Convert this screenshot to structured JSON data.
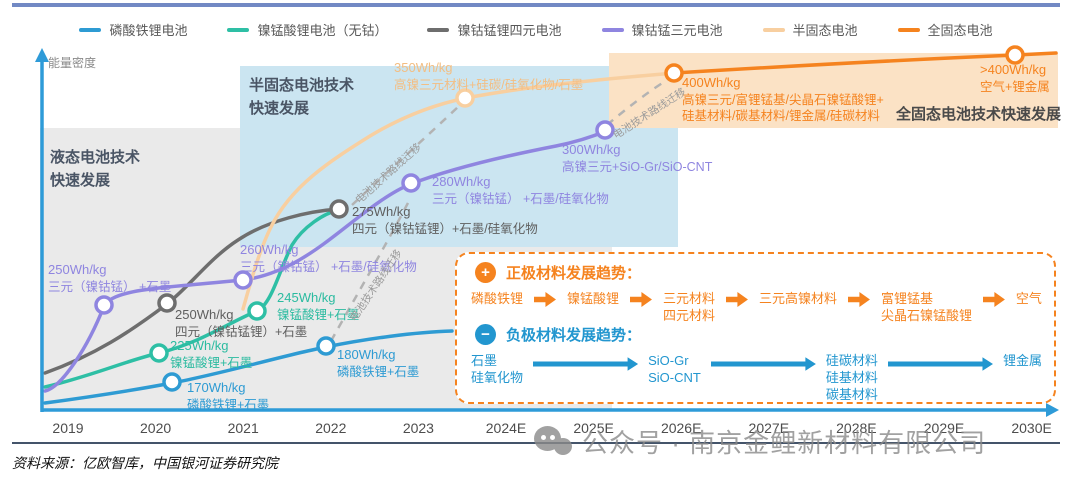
{
  "legend": {
    "items": [
      {
        "label": "磷酸铁锂电池",
        "color": "#2E9BD3"
      },
      {
        "label": "镍锰酸锂电池（无钴）",
        "color": "#2EBFA5"
      },
      {
        "label": "镍钴锰锂四元电池",
        "color": "#6E6E6E"
      },
      {
        "label": "镍钴锰三元电池",
        "color": "#8F85E0"
      },
      {
        "label": "半固态电池",
        "color": "#F8CFA0"
      },
      {
        "label": "全固态电池",
        "color": "#F5831F"
      }
    ]
  },
  "colors": {
    "lfp": "#2E9BD3",
    "lnmo": "#2BBBA0",
    "quad": "#5F5F5F",
    "ncm": "#8F85E0",
    "semi": "#F3BE83",
    "solid": "#F5831F",
    "axis": "#2E9BD8",
    "region_liquid": "#EAEAEA",
    "region_semi": "#CBE5F1",
    "region_solid": "#FBE2C5"
  },
  "axis": {
    "y_label": "能量密度",
    "x_ticks": [
      "2019",
      "2020",
      "2021",
      "2022",
      "2023",
      "2024E",
      "2025E",
      "2026E",
      "2027E",
      "2028E",
      "2029E",
      "2030E"
    ]
  },
  "regions": {
    "liquid": {
      "title": "液态电池技术\n快速发展"
    },
    "semi": {
      "title": "半固态电池技术\n快速发展"
    },
    "solid": {
      "title": "全固态电池技术快速发展"
    }
  },
  "misc": {
    "migration_label": "电池技术路线迁移"
  },
  "chart_data": {
    "type": "line",
    "ylabel": "能量密度",
    "categories": [
      "2019",
      "2020",
      "2021",
      "2022",
      "2023",
      "2024E",
      "2025E",
      "2026E",
      "2027E",
      "2028E",
      "2029E",
      "2030E"
    ],
    "series": [
      {
        "name": "磷酸铁锂电池",
        "points_wh_kg": {
          "2020": 170,
          "2022": 180
        }
      },
      {
        "name": "镍锰酸锂电池（无钴）",
        "points_wh_kg": {
          "2020": 225,
          "2021": 245
        }
      },
      {
        "name": "镍钴锰锂四元电池",
        "points_wh_kg": {
          "2020": 250,
          "2022": 275
        }
      },
      {
        "name": "镍钴锰三元电池",
        "points_wh_kg": {
          "2019": 250,
          "2021": 260,
          "2023": 280,
          "2025E": 300
        }
      },
      {
        "name": "半固态电池",
        "points_wh_kg": {
          "2024E": 350
        }
      },
      {
        "name": "全固态电池",
        "points_wh_kg": {
          "2026E": 400,
          "2030E": ">400"
        }
      }
    ],
    "points": [
      {
        "series": "磷酸铁锂电池",
        "year": "2020",
        "label": "170Wh/kg",
        "materials": "磷酸铁锂+石墨"
      },
      {
        "series": "磷酸铁锂电池",
        "year": "2022",
        "label": "180Wh/kg",
        "materials": "磷酸铁锂+石墨"
      },
      {
        "series": "镍锰酸锂电池（无钴）",
        "year": "2020",
        "label": "225Wh/kg",
        "materials": "镍锰酸锂+石墨"
      },
      {
        "series": "镍锰酸锂电池（无钴）",
        "year": "2021",
        "label": "245Wh/kg",
        "materials": "镍锰酸锂+石墨"
      },
      {
        "series": "镍钴锰锂四元电池",
        "year": "2020",
        "label": "250Wh/kg",
        "materials": "四元（镍钴锰锂）+石墨"
      },
      {
        "series": "镍钴锰锂四元电池",
        "year": "2022",
        "label": "275Wh/kg",
        "materials": "四元（镍钴锰锂）+石墨/硅氧化物"
      },
      {
        "series": "镍钴锰三元电池",
        "year": "2019",
        "label": "250Wh/kg",
        "materials": "三元（镍钴锰） +石墨"
      },
      {
        "series": "镍钴锰三元电池",
        "year": "2021",
        "label": "260Wh/kg",
        "materials": "三元（镍钴锰） +石墨/硅氧化物"
      },
      {
        "series": "镍钴锰三元电池",
        "year": "2023",
        "label": "280Wh/kg",
        "materials": "三元（镍钴锰） +石墨/硅氧化物"
      },
      {
        "series": "镍钴锰三元电池",
        "year": "2025E",
        "label": "300Wh/kg",
        "materials": "高镍三元+SiO-Gr/SiO-CNT"
      },
      {
        "series": "半固态电池",
        "year": "2024E",
        "label": "350Wh/kg",
        "materials": "高镍三元材料+硅碳/硅氧化物/石墨"
      },
      {
        "series": "全固态电池",
        "year": "2026E",
        "label": "400Wh/kg",
        "materials": "高镍三元/富锂锰基/尖晶石镍锰酸锂+\n硅基材料/碳基材料/锂金属/硅碳材料"
      },
      {
        "series": "全固态电池",
        "year": "2030E",
        "label": ">400Wh/kg",
        "materials": "空气+锂金属"
      }
    ]
  },
  "trend_box": {
    "cathode_title": "正极材料发展趋势：",
    "cathode_chain": [
      "磷酸铁锂",
      "镍锰酸锂",
      "三元材料\n四元材料",
      "三元高镍材料",
      "富锂锰基\n尖晶石镍锰酸锂",
      "空气"
    ],
    "anode_title": "负极材料发展趋势：",
    "anode_chain": [
      "石墨\n硅氧化物",
      "SiO-Gr\nSiO-CNT",
      "硅碳材料\n硅基材料\n碳基材料",
      "锂金属"
    ]
  },
  "icons": {
    "plus": "+",
    "minus": "−"
  },
  "watermark": {
    "text": "公众号 · 南京金鲤新材料有限公司"
  },
  "footer": {
    "source": "资料来源：亿欧智库，中国银河证券研究院"
  }
}
